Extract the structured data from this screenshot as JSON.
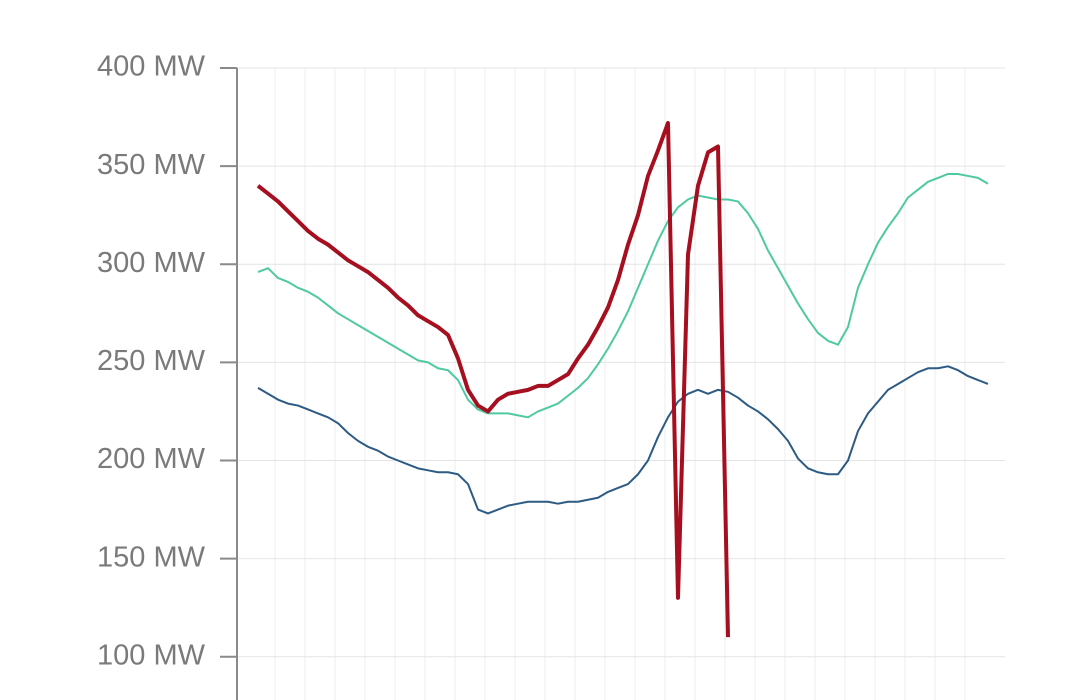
{
  "chart_data": {
    "type": "line",
    "categories": [
      null,
      null,
      null,
      null,
      null,
      null,
      null,
      null,
      null,
      null,
      null,
      null,
      null,
      null,
      null,
      null,
      null,
      null,
      null,
      null,
      null,
      null,
      null,
      null,
      null,
      null,
      null,
      null,
      null,
      null,
      null,
      null,
      null,
      null,
      null,
      null,
      null,
      null,
      null,
      null,
      null,
      null,
      null,
      null,
      null,
      null,
      null,
      null,
      null,
      null,
      null,
      null,
      null,
      null,
      null,
      null,
      null,
      null,
      null,
      null,
      null,
      null,
      null,
      null,
      null,
      null,
      null,
      null,
      null,
      null,
      null,
      null,
      null,
      null
    ],
    "series": [
      {
        "color": "#4fc9a1",
        "values": [
          296,
          298,
          293,
          291,
          288,
          286,
          283,
          279,
          275,
          272,
          269,
          266,
          263,
          260,
          257,
          254,
          251,
          250,
          247,
          246,
          241,
          231,
          226,
          224,
          224,
          224,
          223,
          222,
          225,
          227,
          229,
          233,
          237,
          242,
          249,
          257,
          266,
          276,
          288,
          300,
          312,
          322,
          329,
          333,
          335,
          334,
          333,
          333,
          332,
          326,
          318,
          307,
          298,
          289,
          280,
          272,
          265,
          261,
          259,
          268,
          288,
          300,
          311,
          319,
          326,
          334,
          338,
          342,
          344,
          346,
          346,
          345,
          344,
          341
        ]
      },
      {
        "color": "#2d5b84",
        "values": [
          237,
          234,
          231,
          229,
          228,
          226,
          224,
          222,
          219,
          214,
          210,
          207,
          205,
          202,
          200,
          198,
          196,
          195,
          194,
          194,
          193,
          188,
          175,
          173,
          175,
          177,
          178,
          179,
          179,
          179,
          178,
          179,
          179,
          180,
          181,
          184,
          186,
          188,
          193,
          200,
          212,
          222,
          230,
          234,
          236,
          234,
          236,
          235,
          232,
          228,
          225,
          221,
          216,
          210,
          201,
          196,
          194,
          193,
          193,
          200,
          215,
          224,
          230,
          236,
          239,
          242,
          245,
          247,
          247,
          248,
          246,
          243,
          241,
          239
        ]
      },
      {
        "color": "#a50f1f",
        "values": [
          340,
          336,
          332,
          327,
          322,
          317,
          313,
          310,
          306,
          302,
          299,
          296,
          292,
          288,
          283,
          279,
          274,
          271,
          268,
          264,
          252,
          236,
          228,
          225,
          231,
          234,
          235,
          236,
          238,
          238,
          241,
          244,
          252,
          259,
          268,
          278,
          292,
          310,
          325,
          345,
          358,
          372,
          130,
          305,
          340,
          357,
          360,
          110,
          null,
          null,
          null,
          null,
          null,
          null,
          null,
          null,
          null,
          null,
          null,
          null,
          null,
          null,
          null,
          null,
          null,
          null,
          null,
          null,
          null,
          null,
          null,
          null,
          null,
          null
        ]
      }
    ],
    "ylim": [
      80,
      400
    ],
    "yticks": [
      {
        "value": 100,
        "label": "100 MW"
      },
      {
        "value": 150,
        "label": "150 MW"
      },
      {
        "value": 200,
        "label": "200 MW"
      },
      {
        "value": 250,
        "label": "250 MW"
      },
      {
        "value": 300,
        "label": "300 MW"
      },
      {
        "value": 350,
        "label": "350 MW"
      },
      {
        "value": 400,
        "label": "400 MW"
      }
    ],
    "grid": true
  }
}
